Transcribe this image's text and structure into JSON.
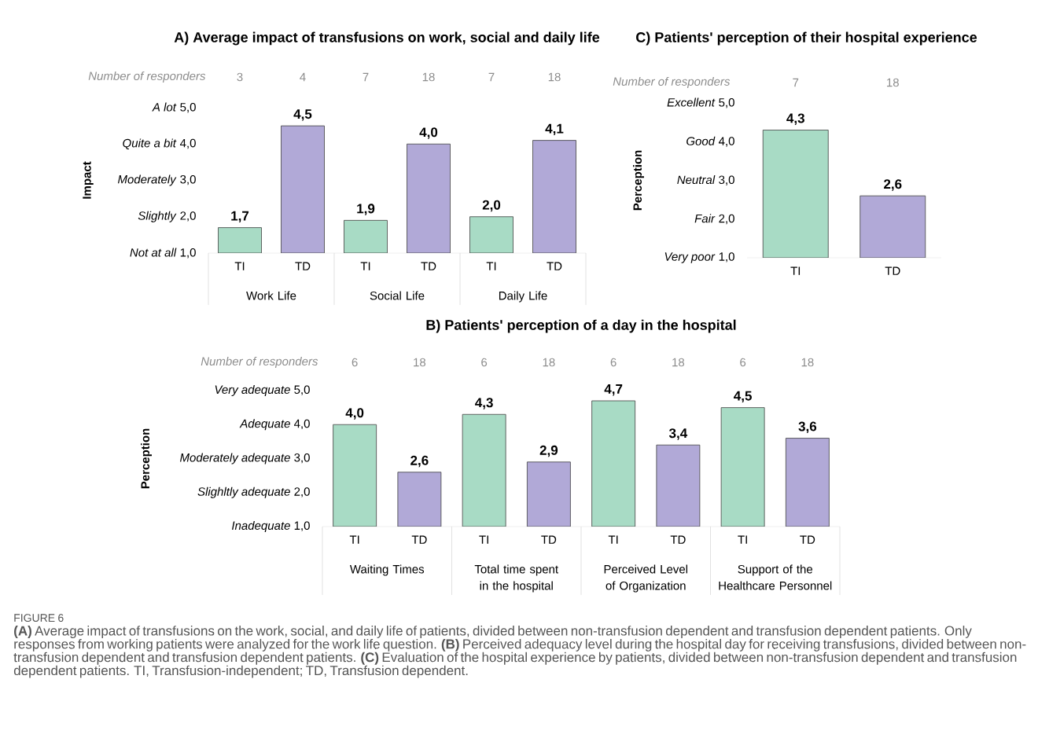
{
  "chart_data": [
    {
      "type": "bar",
      "title": "A) Average impact of transfusions on work, social and daily life",
      "ylabel": "Impact",
      "categories": [
        "TI",
        "TD",
        "TI",
        "TD",
        "TI",
        "TD"
      ],
      "values": [
        1.7,
        4.5,
        1.9,
        4.0,
        2.0,
        4.1
      ],
      "colors": [
        "#a8dbc5",
        "#b1a9d7",
        "#a8dbc5",
        "#b1a9d7",
        "#a8dbc5",
        "#b1a9d7"
      ],
      "value_labels": [
        "1,7",
        "4,5",
        "1,9",
        "4,0",
        "2,0",
        "4,1"
      ],
      "ylim": [
        1,
        5
      ],
      "yticks": [
        {
          "value": 1,
          "label": "*Not at all* 1,0"
        },
        {
          "value": 2,
          "label": "*Slightly* 2,0"
        },
        {
          "value": 3,
          "label": "*Moderately* 3,0"
        },
        {
          "value": 4,
          "label": "*Quite a bit* 4,0"
        },
        {
          "value": 5,
          "label": "*A lot* 5,0"
        }
      ],
      "annotations": [
        "Number of responders",
        "3",
        "4",
        "7",
        "18",
        "7",
        "18",
        "Work Life",
        "Social Life",
        "Daily Life"
      ]
    },
    {
      "type": "bar",
      "title": "C) Patients' perception of their hospital experience",
      "ylabel": "Perception",
      "categories": [
        "TI",
        "TD"
      ],
      "values": [
        4.3,
        2.6
      ],
      "colors": [
        "#a8dbc5",
        "#b1a9d7"
      ],
      "value_labels": [
        "4,3",
        "2,6"
      ],
      "ylim": [
        1,
        5
      ],
      "yticks": [
        {
          "value": 1,
          "label": "*Very poor* 1,0"
        },
        {
          "value": 2,
          "label": "*Fair* 2,0"
        },
        {
          "value": 3,
          "label": "*Neutral* 3,0"
        },
        {
          "value": 4,
          "label": "*Good* 4,0"
        },
        {
          "value": 5,
          "label": "*Excellent* 5,0"
        }
      ],
      "annotations": [
        "Number of responders",
        "7",
        "18"
      ]
    },
    {
      "type": "bar",
      "title": "B) Patients' perception of a day in the hospital",
      "ylabel": "Perception",
      "categories": [
        "TI",
        "TD",
        "TI",
        "TD",
        "TI",
        "TD",
        "TI",
        "TD"
      ],
      "values": [
        4.0,
        2.6,
        4.3,
        2.9,
        4.7,
        3.4,
        4.5,
        3.6
      ],
      "colors": [
        "#a8dbc5",
        "#b1a9d7",
        "#a8dbc5",
        "#b1a9d7",
        "#a8dbc5",
        "#b1a9d7",
        "#a8dbc5",
        "#b1a9d7"
      ],
      "value_labels": [
        "4,0",
        "2,6",
        "4,3",
        "2,9",
        "4,7",
        "3,4",
        "4,5",
        "3,6"
      ],
      "ylim": [
        1,
        5
      ],
      "yticks": [
        {
          "value": 1,
          "label": "*Inadequate* 1,0"
        },
        {
          "value": 2,
          "label": "*Slighltly adequate* 2,0"
        },
        {
          "value": 3,
          "label": "*Moderately adequate* 3,0"
        },
        {
          "value": 4,
          "label": "*Adequate* 4,0"
        },
        {
          "value": 5,
          "label": "*Very adequate* 5,0"
        }
      ],
      "annotations": [
        "Number of responders",
        "6",
        "18",
        "6",
        "18",
        "6",
        "18",
        "6",
        "18",
        "Waiting Times",
        "Total time spent in the hospital",
        "Perceived Level of Organization",
        "Support of the Healthcare Personnel",
        "FIGURE 6",
        "**(A)** Average impact of transfusions on the work, social, and daily life of patients, divided between non-transfusion dependent and transfusion dependent patients. Only responses from working patients were analyzed for the work life question. **(B)** Perceived adequacy level during the hospital day for receiving transfusions, divided between non-transfusion dependent and transfusion dependent patients. **(C)** Evaluation of the hospital experience by patients, divided between non-transfusion dependent and transfusion dependent patients. TI, Transfusion-independent; TD, Transfusion dependent."
      ]
    }
  ]
}
